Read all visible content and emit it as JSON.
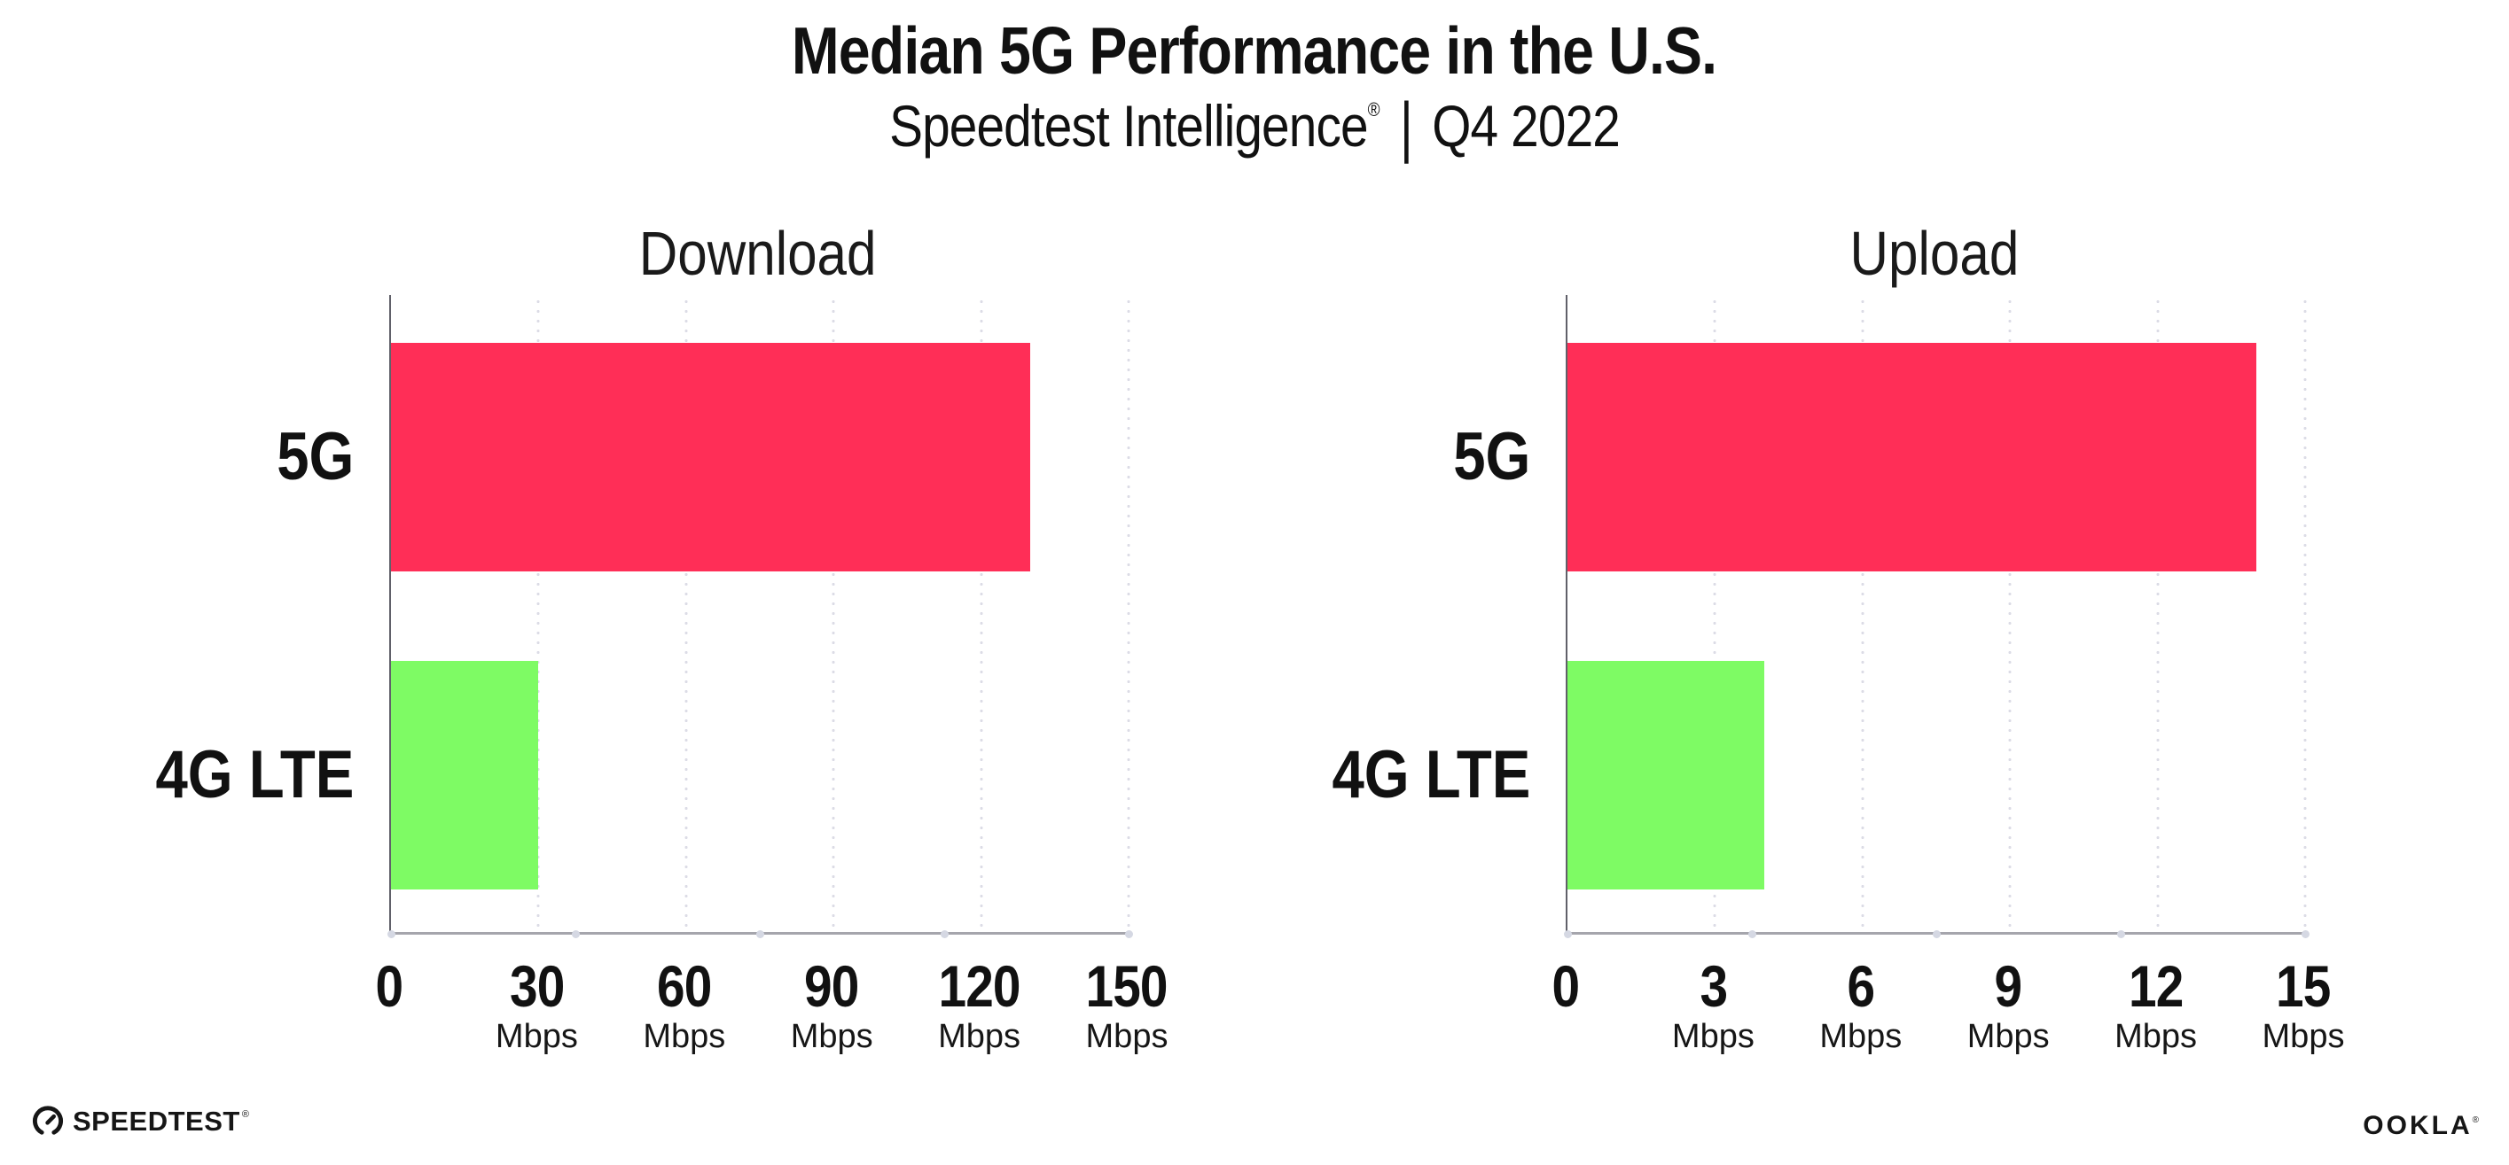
{
  "header": {
    "title": "Median 5G Performance in the U.S.",
    "subtitle_brand": "Speedtest Intelligence",
    "subtitle_reg": "®",
    "subtitle_sep": "|",
    "subtitle_period": "Q4 2022"
  },
  "chart_data": [
    {
      "type": "bar",
      "orientation": "horizontal",
      "title": "Download",
      "categories": [
        "5G",
        "4G LTE"
      ],
      "values": [
        130,
        30
      ],
      "unit": "Mbps",
      "tick_labels": [
        "0",
        "30",
        "60",
        "90",
        "120",
        "150"
      ],
      "xlim": [
        0,
        150
      ],
      "grid": "dotted vertical gridlines every 30 Mbps",
      "legend": "none",
      "bar_colors": [
        "#FF2E57",
        "#7EFB64"
      ]
    },
    {
      "type": "bar",
      "orientation": "horizontal",
      "title": "Upload",
      "categories": [
        "5G",
        "4G LTE"
      ],
      "values": [
        14,
        4
      ],
      "unit": "Mbps",
      "tick_labels": [
        "0",
        "3",
        "6",
        "9",
        "12",
        "15"
      ],
      "xlim": [
        0,
        15
      ],
      "grid": "dotted vertical gridlines every 3 Mbps",
      "legend": "none",
      "bar_colors": [
        "#FF2E57",
        "#7EFB64"
      ]
    }
  ],
  "footer": {
    "speedtest_text": "SPEEDTEST",
    "speedtest_reg": "®",
    "speedtest_icon": "gauge-icon",
    "ookla_text": "OOKLA",
    "ookla_reg": "®"
  },
  "colors": {
    "bar_5g": "#FF2E57",
    "bar_4g_lte": "#7EFB64",
    "gridline_dot": "#DCDCE6",
    "axis_baseline": "#A5A5AC",
    "axis_y": "#606069",
    "text": "#111111",
    "background": "#FFFFFF"
  }
}
